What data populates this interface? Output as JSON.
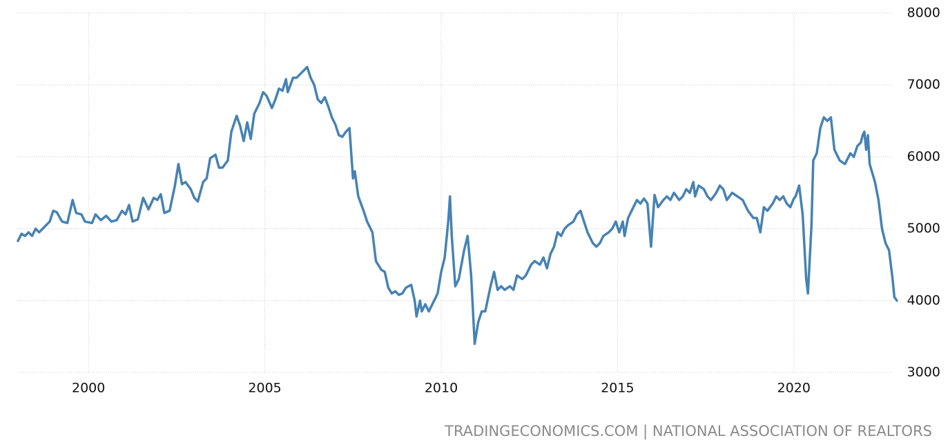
{
  "chart_data": {
    "type": "line",
    "source": "TRADINGECONOMICS.COM | NATIONAL ASSOCIATION OF REALTORS",
    "color": "#4682b4",
    "grid": true,
    "xlim": [
      1997.98,
      2022.94
    ],
    "xticks": [
      2000,
      2005,
      2010,
      2015,
      2020
    ],
    "ylim": [
      3000,
      8000
    ],
    "yticks": [
      3000,
      4000,
      5000,
      6000,
      7000,
      8000
    ],
    "x": [
      1998.0,
      1998.1,
      1998.2,
      1998.3,
      1998.4,
      1998.5,
      1998.6,
      1998.8,
      1998.9,
      1999.0,
      1999.1,
      1999.25,
      1999.4,
      1999.55,
      1999.65,
      1999.8,
      1999.9,
      2000.1,
      2000.2,
      2000.35,
      2000.5,
      2000.65,
      2000.8,
      2000.95,
      2001.05,
      2001.15,
      2001.25,
      2001.4,
      2001.55,
      2001.7,
      2001.85,
      2001.95,
      2002.05,
      2002.15,
      2002.3,
      2002.45,
      2002.55,
      2002.65,
      2002.75,
      2002.9,
      2003.0,
      2003.1,
      2003.25,
      2003.35,
      2003.45,
      2003.6,
      2003.7,
      2003.8,
      2003.95,
      2004.05,
      2004.2,
      2004.3,
      2004.4,
      2004.5,
      2004.6,
      2004.7,
      2004.85,
      2004.95,
      2005.05,
      2005.2,
      2005.3,
      2005.4,
      2005.5,
      2005.6,
      2005.65,
      2005.8,
      2005.9,
      2006.0,
      2006.1,
      2006.2,
      2006.3,
      2006.4,
      2006.5,
      2006.6,
      2006.7,
      2006.8,
      2006.9,
      2007.0,
      2007.1,
      2007.2,
      2007.3,
      2007.4,
      2007.5,
      2007.55,
      2007.65,
      2007.8,
      2007.9,
      2008.05,
      2008.15,
      2008.3,
      2008.4,
      2008.5,
      2008.6,
      2008.7,
      2008.8,
      2008.9,
      2009.0,
      2009.15,
      2009.25,
      2009.3,
      2009.4,
      2009.45,
      2009.55,
      2009.65,
      2009.8,
      2009.9,
      2010.0,
      2010.1,
      2010.2,
      2010.25,
      2010.3,
      2010.4,
      2010.5,
      2010.65,
      2010.75,
      2010.85,
      2010.95,
      2011.05,
      2011.15,
      2011.25,
      2011.4,
      2011.5,
      2011.6,
      2011.7,
      2011.8,
      2011.95,
      2012.05,
      2012.15,
      2012.3,
      2012.4,
      2012.55,
      2012.65,
      2012.8,
      2012.9,
      2013.0,
      2013.1,
      2013.2,
      2013.3,
      2013.4,
      2013.5,
      2013.6,
      2013.75,
      2013.85,
      2013.95,
      2014.05,
      2014.15,
      2014.3,
      2014.4,
      2014.5,
      2014.6,
      2014.75,
      2014.85,
      2014.95,
      2015.05,
      2015.15,
      2015.2,
      2015.3,
      2015.4,
      2015.55,
      2015.65,
      2015.75,
      2015.85,
      2015.95,
      2016.05,
      2016.15,
      2016.3,
      2016.4,
      2016.5,
      2016.6,
      2016.75,
      2016.85,
      2016.95,
      2017.05,
      2017.15,
      2017.2,
      2017.3,
      2017.45,
      2017.55,
      2017.65,
      2017.8,
      2017.9,
      2018.0,
      2018.1,
      2018.25,
      2018.4,
      2018.55,
      2018.7,
      2018.85,
      2018.95,
      2019.05,
      2019.15,
      2019.25,
      2019.4,
      2019.5,
      2019.6,
      2019.7,
      2019.8,
      2019.9,
      2020.0,
      2020.05,
      2020.15,
      2020.25,
      2020.35,
      2020.4,
      2020.5,
      2020.55,
      2020.65,
      2020.75,
      2020.85,
      2020.95,
      2021.05,
      2021.15,
      2021.3,
      2021.45,
      2021.6,
      2021.7,
      2021.8,
      2021.9,
      2021.95,
      2022.0,
      2022.05,
      2022.1,
      2022.15,
      2022.3,
      2022.4,
      2022.5,
      2022.6,
      2022.7,
      2022.8,
      2022.85,
      2022.92
    ],
    "values": [
      4830,
      4930,
      4900,
      4950,
      4900,
      5000,
      4950,
      5050,
      5100,
      5250,
      5230,
      5100,
      5080,
      5400,
      5220,
      5200,
      5100,
      5080,
      5200,
      5120,
      5180,
      5100,
      5120,
      5250,
      5200,
      5330,
      5100,
      5130,
      5430,
      5270,
      5430,
      5400,
      5480,
      5220,
      5250,
      5600,
      5900,
      5620,
      5650,
      5550,
      5430,
      5380,
      5650,
      5700,
      5980,
      6030,
      5850,
      5850,
      5950,
      6350,
      6570,
      6430,
      6220,
      6480,
      6250,
      6600,
      6750,
      6900,
      6850,
      6680,
      6800,
      6950,
      6920,
      7080,
      6900,
      7100,
      7100,
      7150,
      7200,
      7250,
      7100,
      7000,
      6800,
      6750,
      6830,
      6700,
      6550,
      6450,
      6300,
      6280,
      6350,
      6400,
      5700,
      5800,
      5450,
      5250,
      5100,
      4950,
      4550,
      4430,
      4400,
      4180,
      4100,
      4130,
      4080,
      4100,
      4180,
      4220,
      4000,
      3780,
      4000,
      3850,
      3950,
      3850,
      4000,
      4100,
      4400,
      4600,
      5100,
      5450,
      4900,
      4200,
      4300,
      4700,
      4900,
      4350,
      3400,
      3700,
      3850,
      3850,
      4200,
      4400,
      4150,
      4200,
      4150,
      4200,
      4150,
      4350,
      4300,
      4350,
      4500,
      4550,
      4500,
      4600,
      4450,
      4650,
      4750,
      4950,
      4900,
      5000,
      5050,
      5100,
      5200,
      5250,
      5100,
      4950,
      4800,
      4750,
      4800,
      4900,
      4950,
      5000,
      5100,
      4950,
      5100,
      4900,
      5150,
      5250,
      5400,
      5350,
      5420,
      5350,
      4750,
      5470,
      5300,
      5400,
      5450,
      5400,
      5500,
      5400,
      5450,
      5550,
      5500,
      5650,
      5450,
      5600,
      5550,
      5450,
      5400,
      5500,
      5600,
      5550,
      5400,
      5500,
      5450,
      5400,
      5250,
      5150,
      5150,
      4950,
      5300,
      5250,
      5350,
      5450,
      5400,
      5450,
      5350,
      5300,
      5420,
      5450,
      5600,
      5200,
      4300,
      4100,
      5050,
      5950,
      6050,
      6400,
      6550,
      6500,
      6550,
      6100,
      5950,
      5900,
      6050,
      6000,
      6150,
      6200,
      6300,
      6350,
      6100,
      6300,
      5900,
      5650,
      5400,
      5000,
      4800,
      4700,
      4300,
      4050,
      4000
    ]
  }
}
